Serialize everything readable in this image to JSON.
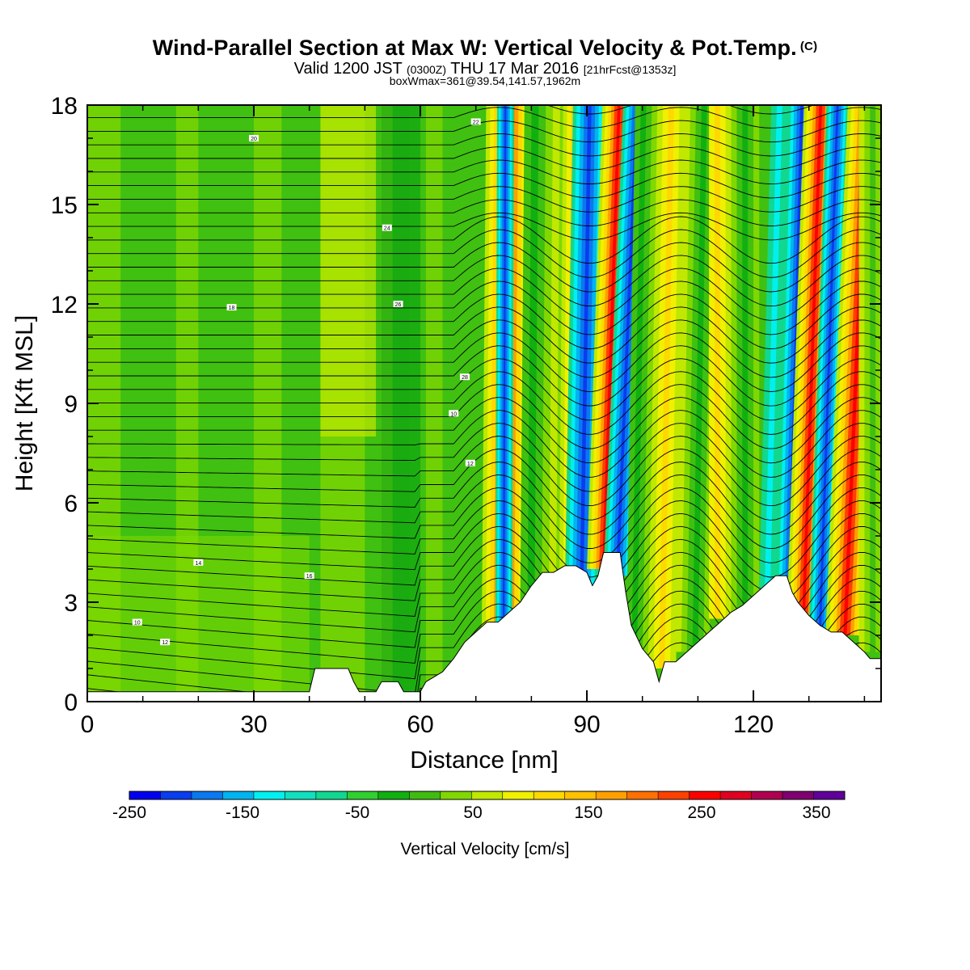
{
  "header": {
    "title": "Wind-Parallel Section at Max W: Vertical Velocity & Pot.Temp.",
    "title_mark": "(C)",
    "valid_main": "Valid 1200 JST",
    "valid_z": "(0300Z)",
    "valid_date": "THU 17 Mar 2016",
    "valid_fcst": "[21hrFcst@1353z]",
    "boxmax": "boxWmax=361@39.54,141.57,1962m"
  },
  "chart_data": {
    "type": "heatmap",
    "xlabel": "Distance [nm]",
    "ylabel": "Height [Kft MSL]",
    "xlim": [
      0,
      143
    ],
    "ylim": [
      0,
      18
    ],
    "xticks": [
      0,
      30,
      60,
      90,
      120
    ],
    "yticks": [
      0,
      3,
      6,
      9,
      12,
      15,
      18
    ],
    "colorbar": {
      "title": "Vertical Velocity [cm/s]",
      "labels": [
        "-250",
        "-150",
        "-50",
        "50",
        "150",
        "250",
        "350"
      ],
      "colors": [
        "#0000f0",
        "#0a3cf0",
        "#0a78f0",
        "#00b4f0",
        "#00f0f0",
        "#10e0c0",
        "#10d890",
        "#30d030",
        "#10b010",
        "#40bc10",
        "#80d800",
        "#c0e800",
        "#f0f000",
        "#ffd800",
        "#ffc000",
        "#ffa000",
        "#ff7000",
        "#ff4000",
        "#ff0000",
        "#e00020",
        "#b00050",
        "#800070",
        "#60009a"
      ]
    },
    "terrain_nm_kft": [
      [
        0,
        0.3
      ],
      [
        40,
        0.3
      ],
      [
        41,
        1.0
      ],
      [
        47,
        1.0
      ],
      [
        48,
        0.6
      ],
      [
        49,
        0.3
      ],
      [
        52,
        0.3
      ],
      [
        53,
        0.6
      ],
      [
        56,
        0.6
      ],
      [
        57,
        0.3
      ],
      [
        60,
        0.3
      ],
      [
        61,
        0.6
      ],
      [
        64,
        0.9
      ],
      [
        66,
        1.3
      ],
      [
        68,
        1.8
      ],
      [
        70,
        2.1
      ],
      [
        72,
        2.4
      ],
      [
        74,
        2.4
      ],
      [
        76,
        2.7
      ],
      [
        78,
        3.0
      ],
      [
        80,
        3.5
      ],
      [
        82,
        3.9
      ],
      [
        84,
        3.9
      ],
      [
        86,
        4.1
      ],
      [
        88,
        4.1
      ],
      [
        90,
        3.9
      ],
      [
        91,
        3.5
      ],
      [
        92,
        3.8
      ],
      [
        93,
        4.5
      ],
      [
        96,
        4.5
      ],
      [
        97,
        3.3
      ],
      [
        98,
        2.3
      ],
      [
        100,
        1.6
      ],
      [
        102,
        1.2
      ],
      [
        103,
        0.6
      ],
      [
        104,
        1.2
      ],
      [
        106,
        1.2
      ],
      [
        108,
        1.5
      ],
      [
        110,
        1.8
      ],
      [
        112,
        2.1
      ],
      [
        114,
        2.4
      ],
      [
        116,
        2.7
      ],
      [
        118,
        2.9
      ],
      [
        120,
        3.2
      ],
      [
        122,
        3.5
      ],
      [
        124,
        3.8
      ],
      [
        126,
        3.8
      ],
      [
        127,
        3.3
      ],
      [
        128,
        3.0
      ],
      [
        130,
        2.6
      ],
      [
        132,
        2.3
      ],
      [
        134,
        2.1
      ],
      [
        136,
        2.1
      ],
      [
        138,
        1.8
      ],
      [
        140,
        1.5
      ],
      [
        141,
        1.3
      ],
      [
        143,
        1.3
      ]
    ],
    "updraft_bands_nm": [
      [
        90,
        95
      ],
      [
        127,
        131
      ],
      [
        136,
        140
      ],
      [
        76,
        79
      ],
      [
        86,
        89
      ]
    ],
    "downdraft_bands_nm": [
      [
        74,
        75.5
      ],
      [
        93,
        96.5
      ],
      [
        88,
        90
      ],
      [
        125,
        128
      ],
      [
        132,
        134
      ],
      [
        131,
        133
      ]
    ],
    "theta_label_samples": [
      "10",
      "12",
      "14",
      "16",
      "18",
      "20",
      "22",
      "24",
      "26",
      "28"
    ]
  }
}
